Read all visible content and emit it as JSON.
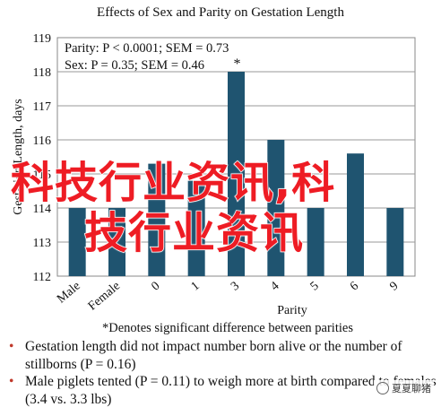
{
  "chart_data": {
    "type": "bar",
    "title": "Effects of Sex and Parity on Gestation Length",
    "ylabel": "Gestation Length, days",
    "xlabel": "Parity",
    "categories": [
      "Male",
      "Female",
      "0",
      "1",
      "3",
      "4",
      "5",
      "6",
      "9"
    ],
    "values": [
      114.0,
      114.0,
      115.3,
      114.8,
      118.0,
      116.0,
      114.0,
      115.6,
      114.0
    ],
    "ylim": [
      112,
      119
    ],
    "yticks": [
      "112",
      "113",
      "114",
      "115",
      "116",
      "117",
      "118",
      "119"
    ],
    "bar_color": "#1f5470",
    "grid": true,
    "annotations": {
      "parity_stat": "Parity: P < 0.0001; SEM = 0.73",
      "sex_stat": "Sex: P = 0.35; SEM = 0.46",
      "star_label": "*",
      "footnote": "*Denotes significant difference between parities"
    }
  },
  "bullets": [
    "Gestation length did not impact number born alive or the number of stillborns (P = 0.16)",
    "Male piglets tented (P = 0.11) to weigh more at birth compared to females (3.4 vs. 3.3 lbs)"
  ],
  "bullet_mark": "•",
  "overlay_text": [
    "科技行业资讯,科",
    "技行业资讯"
  ],
  "watermark": {
    "text": "夏夏聊猪",
    "icon": "wechat-icon"
  }
}
